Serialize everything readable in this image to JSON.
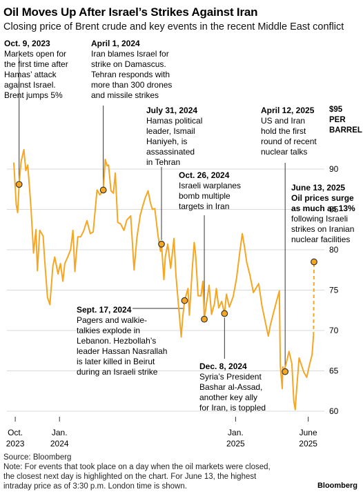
{
  "header": {
    "title": "Oil Moves Up After Israel’s Strikes Against Iran",
    "subtitle": "Closing price of Brent crude and key events in the recent Middle East conflict"
  },
  "footer": {
    "source": "Source: Bloomberg",
    "note_line1": "Note: For events that took place on a day when the oil markets were closed,",
    "note_line2": "the closest next day is highlighted on the chart. For June 13, the highest",
    "note_line3": "intraday price as of 3:30 p.m. London time is shown.",
    "brand": "Bloomberg"
  },
  "colors": {
    "line": "#f5a623",
    "marker_fill": "#f5a623",
    "marker_stroke": "#333333",
    "grid": "#d9d9d9",
    "text": "#000000"
  },
  "chart_data": {
    "type": "line",
    "y_unit_lines": [
      "$95",
      "PER",
      "BARREL"
    ],
    "ylim": [
      59,
      96
    ],
    "yticks": [
      90,
      85,
      80,
      75,
      70,
      65,
      60
    ],
    "ytick_labels": [
      "90",
      "85",
      "80",
      "75",
      "70",
      "65",
      "60"
    ],
    "x_start": "2023-09-28",
    "x_end": "2025-06-13",
    "xticks": [
      {
        "date": "2023-10-01",
        "line1": "Oct.",
        "line2": "2023"
      },
      {
        "date": "2024-01-01",
        "line1": "Jan.",
        "line2": "2024"
      },
      {
        "date": "2025-01-01",
        "line1": "Jan.",
        "line2": "2025"
      },
      {
        "date": "2025-06-01",
        "line1": "June",
        "line2": "2025"
      }
    ],
    "series": [
      {
        "points": [
          [
            "2023-09-28",
            90.8
          ],
          [
            "2023-10-03",
            85.6
          ],
          [
            "2023-10-06",
            84.6
          ],
          [
            "2023-10-09",
            88.1
          ],
          [
            "2023-10-13",
            90.9
          ],
          [
            "2023-10-19",
            92.4
          ],
          [
            "2023-10-23",
            89.8
          ],
          [
            "2023-10-27",
            90.5
          ],
          [
            "2023-10-31",
            87.4
          ],
          [
            "2023-11-03",
            84.9
          ],
          [
            "2023-11-08",
            79.6
          ],
          [
            "2023-11-13",
            82.5
          ],
          [
            "2023-11-16",
            77.4
          ],
          [
            "2023-11-21",
            82.4
          ],
          [
            "2023-11-28",
            81.7
          ],
          [
            "2023-12-01",
            78.9
          ],
          [
            "2023-12-07",
            74.1
          ],
          [
            "2023-12-12",
            73.2
          ],
          [
            "2023-12-18",
            77.9
          ],
          [
            "2023-12-22",
            79.1
          ],
          [
            "2023-12-29",
            77.0
          ],
          [
            "2024-01-03",
            78.3
          ],
          [
            "2024-01-08",
            76.1
          ],
          [
            "2024-01-12",
            78.3
          ],
          [
            "2024-01-18",
            79.1
          ],
          [
            "2024-01-24",
            80.0
          ],
          [
            "2024-01-29",
            82.4
          ],
          [
            "2024-02-02",
            77.3
          ],
          [
            "2024-02-08",
            81.6
          ],
          [
            "2024-02-14",
            81.6
          ],
          [
            "2024-02-20",
            82.3
          ],
          [
            "2024-02-27",
            83.6
          ],
          [
            "2024-03-05",
            82.0
          ],
          [
            "2024-03-11",
            82.2
          ],
          [
            "2024-03-19",
            87.4
          ],
          [
            "2024-03-25",
            86.8
          ],
          [
            "2024-04-01",
            87.4
          ],
          [
            "2024-04-05",
            91.2
          ],
          [
            "2024-04-09",
            90.4
          ],
          [
            "2024-04-12",
            90.5
          ],
          [
            "2024-04-17",
            87.3
          ],
          [
            "2024-04-22",
            87.0
          ],
          [
            "2024-04-26",
            89.5
          ],
          [
            "2024-05-01",
            83.4
          ],
          [
            "2024-05-07",
            83.2
          ],
          [
            "2024-05-14",
            82.4
          ],
          [
            "2024-05-20",
            83.7
          ],
          [
            "2024-05-28",
            84.2
          ],
          [
            "2024-06-04",
            77.5
          ],
          [
            "2024-06-10",
            81.6
          ],
          [
            "2024-06-17",
            84.3
          ],
          [
            "2024-06-21",
            85.2
          ],
          [
            "2024-06-27",
            86.4
          ],
          [
            "2024-07-03",
            87.3
          ],
          [
            "2024-07-08",
            85.8
          ],
          [
            "2024-07-12",
            85.0
          ],
          [
            "2024-07-17",
            85.1
          ],
          [
            "2024-07-24",
            81.7
          ],
          [
            "2024-07-29",
            79.8
          ],
          [
            "2024-07-31",
            80.7
          ],
          [
            "2024-08-05",
            76.3
          ],
          [
            "2024-08-08",
            79.2
          ],
          [
            "2024-08-13",
            80.7
          ],
          [
            "2024-08-19",
            77.7
          ],
          [
            "2024-08-26",
            81.4
          ],
          [
            "2024-08-30",
            76.9
          ],
          [
            "2024-09-05",
            72.7
          ],
          [
            "2024-09-10",
            69.2
          ],
          [
            "2024-09-13",
            71.6
          ],
          [
            "2024-09-17",
            73.7
          ],
          [
            "2024-09-24",
            75.2
          ],
          [
            "2024-09-27",
            71.9
          ],
          [
            "2024-10-03",
            77.6
          ],
          [
            "2024-10-07",
            80.9
          ],
          [
            "2024-10-10",
            79.4
          ],
          [
            "2024-10-15",
            74.3
          ],
          [
            "2024-10-21",
            74.3
          ],
          [
            "2024-10-25",
            76.1
          ],
          [
            "2024-10-28",
            71.4
          ],
          [
            "2024-11-01",
            73.1
          ],
          [
            "2024-11-07",
            75.6
          ],
          [
            "2024-11-12",
            72.0
          ],
          [
            "2024-11-18",
            73.3
          ],
          [
            "2024-11-22",
            75.2
          ],
          [
            "2024-11-27",
            72.8
          ],
          [
            "2024-12-03",
            73.6
          ],
          [
            "2024-12-09",
            72.1
          ],
          [
            "2024-12-13",
            74.5
          ],
          [
            "2024-12-19",
            72.9
          ],
          [
            "2024-12-27",
            74.2
          ],
          [
            "2025-01-03",
            76.5
          ],
          [
            "2025-01-10",
            79.8
          ],
          [
            "2025-01-15",
            82.0
          ],
          [
            "2025-01-20",
            80.2
          ],
          [
            "2025-01-24",
            78.5
          ],
          [
            "2025-01-31",
            76.8
          ],
          [
            "2025-02-07",
            74.7
          ],
          [
            "2025-02-12",
            75.2
          ],
          [
            "2025-02-18",
            75.8
          ],
          [
            "2025-02-25",
            73.0
          ],
          [
            "2025-03-04",
            71.0
          ],
          [
            "2025-03-10",
            69.3
          ],
          [
            "2025-03-14",
            70.6
          ],
          [
            "2025-03-20",
            72.0
          ],
          [
            "2025-03-27",
            73.6
          ],
          [
            "2025-04-02",
            74.9
          ],
          [
            "2025-04-04",
            65.6
          ],
          [
            "2025-04-08",
            62.8
          ],
          [
            "2025-04-09",
            65.5
          ],
          [
            "2025-04-11",
            64.8
          ],
          [
            "2025-04-16",
            65.9
          ],
          [
            "2025-04-22",
            67.4
          ],
          [
            "2025-04-28",
            65.9
          ],
          [
            "2025-05-02",
            61.3
          ],
          [
            "2025-05-05",
            60.2
          ],
          [
            "2025-05-08",
            62.8
          ],
          [
            "2025-05-13",
            66.6
          ],
          [
            "2025-05-19",
            65.5
          ],
          [
            "2025-05-23",
            64.8
          ],
          [
            "2025-05-29",
            64.2
          ],
          [
            "2025-06-03",
            65.6
          ],
          [
            "2025-06-09",
            67.0
          ],
          [
            "2025-06-12",
            69.4
          ]
        ]
      },
      {
        "dashed": true,
        "points": [
          [
            "2025-06-12",
            69.4
          ],
          [
            "2025-06-13",
            78.5
          ]
        ]
      }
    ],
    "events": [
      {
        "date": "2023-10-09",
        "value": 88.1,
        "title": "Oct. 9, 2023",
        "lines": [
          "Markets open for",
          "the first time after",
          "Hamas’ attack",
          "against Israel.",
          "Brent jumps 5%"
        ]
      },
      {
        "date": "2024-04-01",
        "value": 87.4,
        "title": "April 1, 2024",
        "lines": [
          "Iran blames Israel for",
          "strike on Damascus.",
          "Tehran responds with",
          "more than 300 drones",
          "and missile strikes"
        ]
      },
      {
        "date": "2024-07-31",
        "value": 80.7,
        "title": "July 31, 2024",
        "lines": [
          "Hamas political",
          "leader, Ismail",
          "Haniyeh, is",
          "assassinated",
          "in Tehran"
        ]
      },
      {
        "date": "2024-09-17",
        "value": 73.7,
        "title": "Sept. 17, 2024",
        "lines": [
          "Pagers and walkie-",
          "talkies explode in",
          "Lebanon. Hezbollah’s",
          "leader Hassan Nasrallah",
          "is later killed in Beirut",
          "during an Israeli strike"
        ]
      },
      {
        "date": "2024-10-28",
        "value": 71.4,
        "title": "Oct. 26, 2024",
        "lines": [
          "Israeli warplanes",
          "bomb multiple",
          "targets in Iran"
        ]
      },
      {
        "date": "2024-12-09",
        "value": 72.1,
        "title": "Dec. 8, 2024",
        "lines": [
          "Syria’s President",
          "Bashar al-Assad,",
          "another key ally",
          "for Iran, is toppled"
        ]
      },
      {
        "date": "2025-04-14",
        "value": 64.9,
        "title": "April 12, 2025",
        "lines": [
          "US and Iran",
          "hold the first",
          "round of recent",
          "nuclear talks"
        ]
      },
      {
        "date": "2025-06-13",
        "value": 78.5,
        "title": "June 13, 2025",
        "lines_bold": [
          "Oil prices surge",
          "as much as 13%"
        ],
        "lines": [
          "following Israeli",
          "strikes on Iranian",
          "nuclear facilities"
        ]
      }
    ]
  }
}
